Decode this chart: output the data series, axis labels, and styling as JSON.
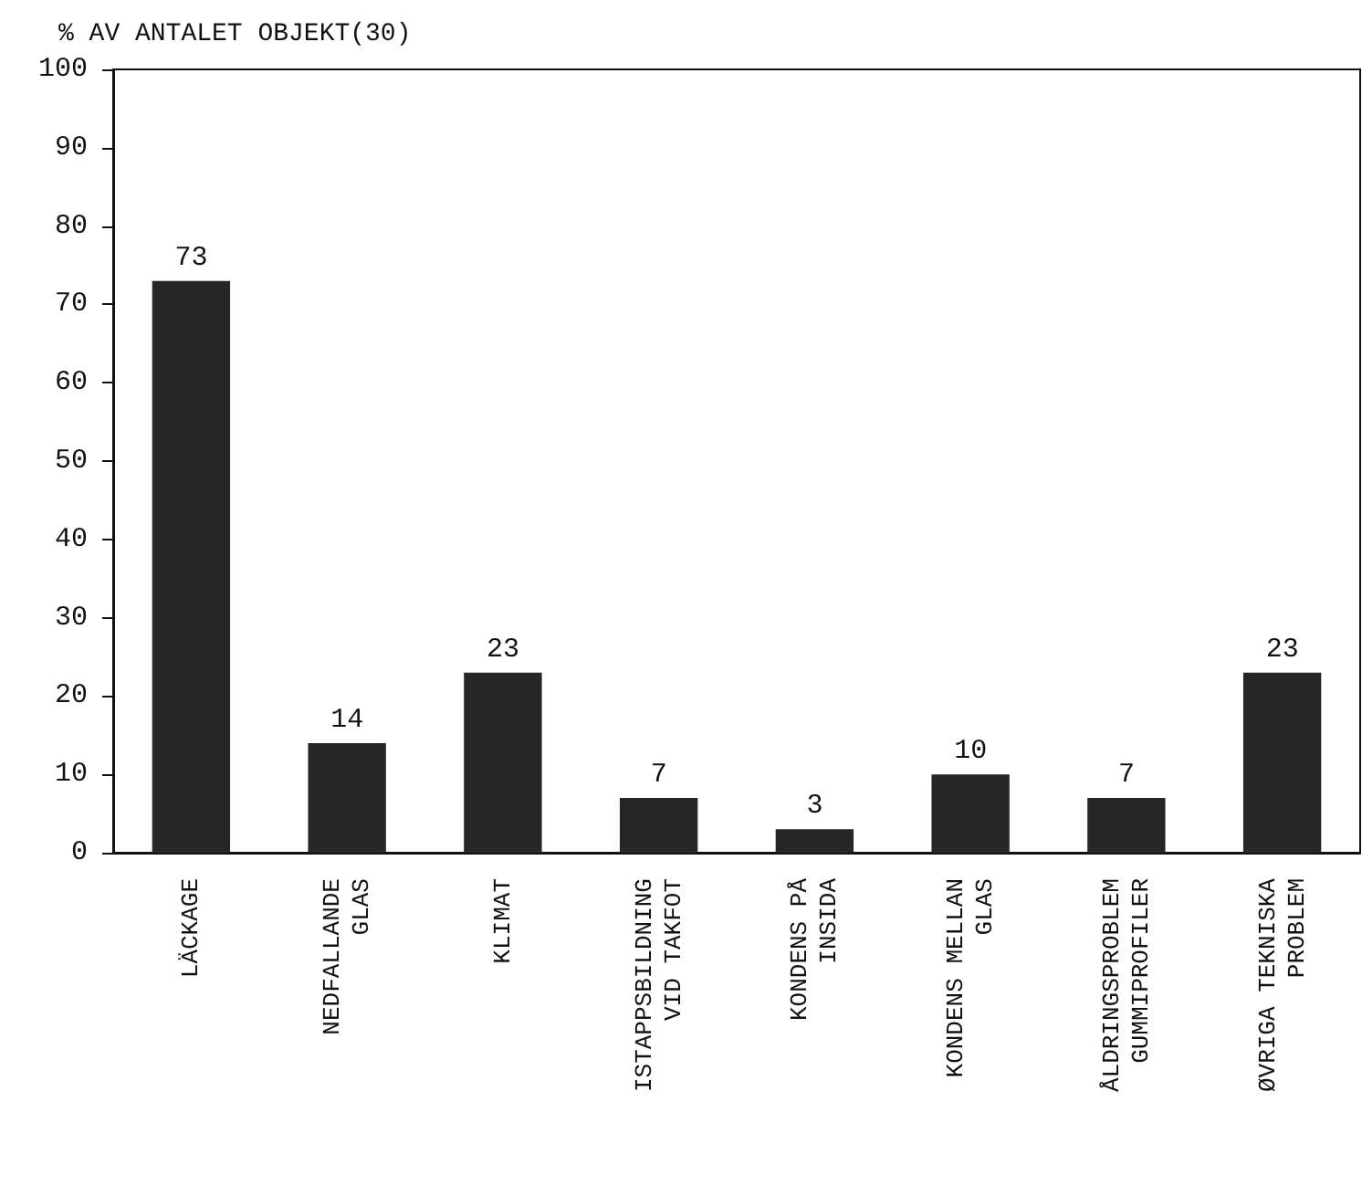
{
  "chart_data": {
    "type": "bar",
    "ylabel": "% AV ANTALET OBJEKT(30)",
    "categories": [
      "LÄCKAGE",
      "NEDFALLANDE\nGLAS",
      "KLIMAT",
      "ISTAPPSBILDNING\nVID TAKFOT",
      "KONDENS PÅ\nINSIDA",
      "KONDENS MELLAN\nGLAS",
      "ÅLDRINGSPROBLEM\nGUMMIPROFILER",
      "ØVRIGA TEKNISKA\nPROBLEM"
    ],
    "values": [
      73,
      14,
      23,
      7,
      3,
      10,
      7,
      23
    ],
    "color": "#262626",
    "ylim": [
      0,
      100
    ],
    "yticks": [
      0,
      10,
      20,
      30,
      40,
      50,
      60,
      70,
      80,
      90,
      100
    ],
    "grid": false,
    "data_labels": true
  }
}
